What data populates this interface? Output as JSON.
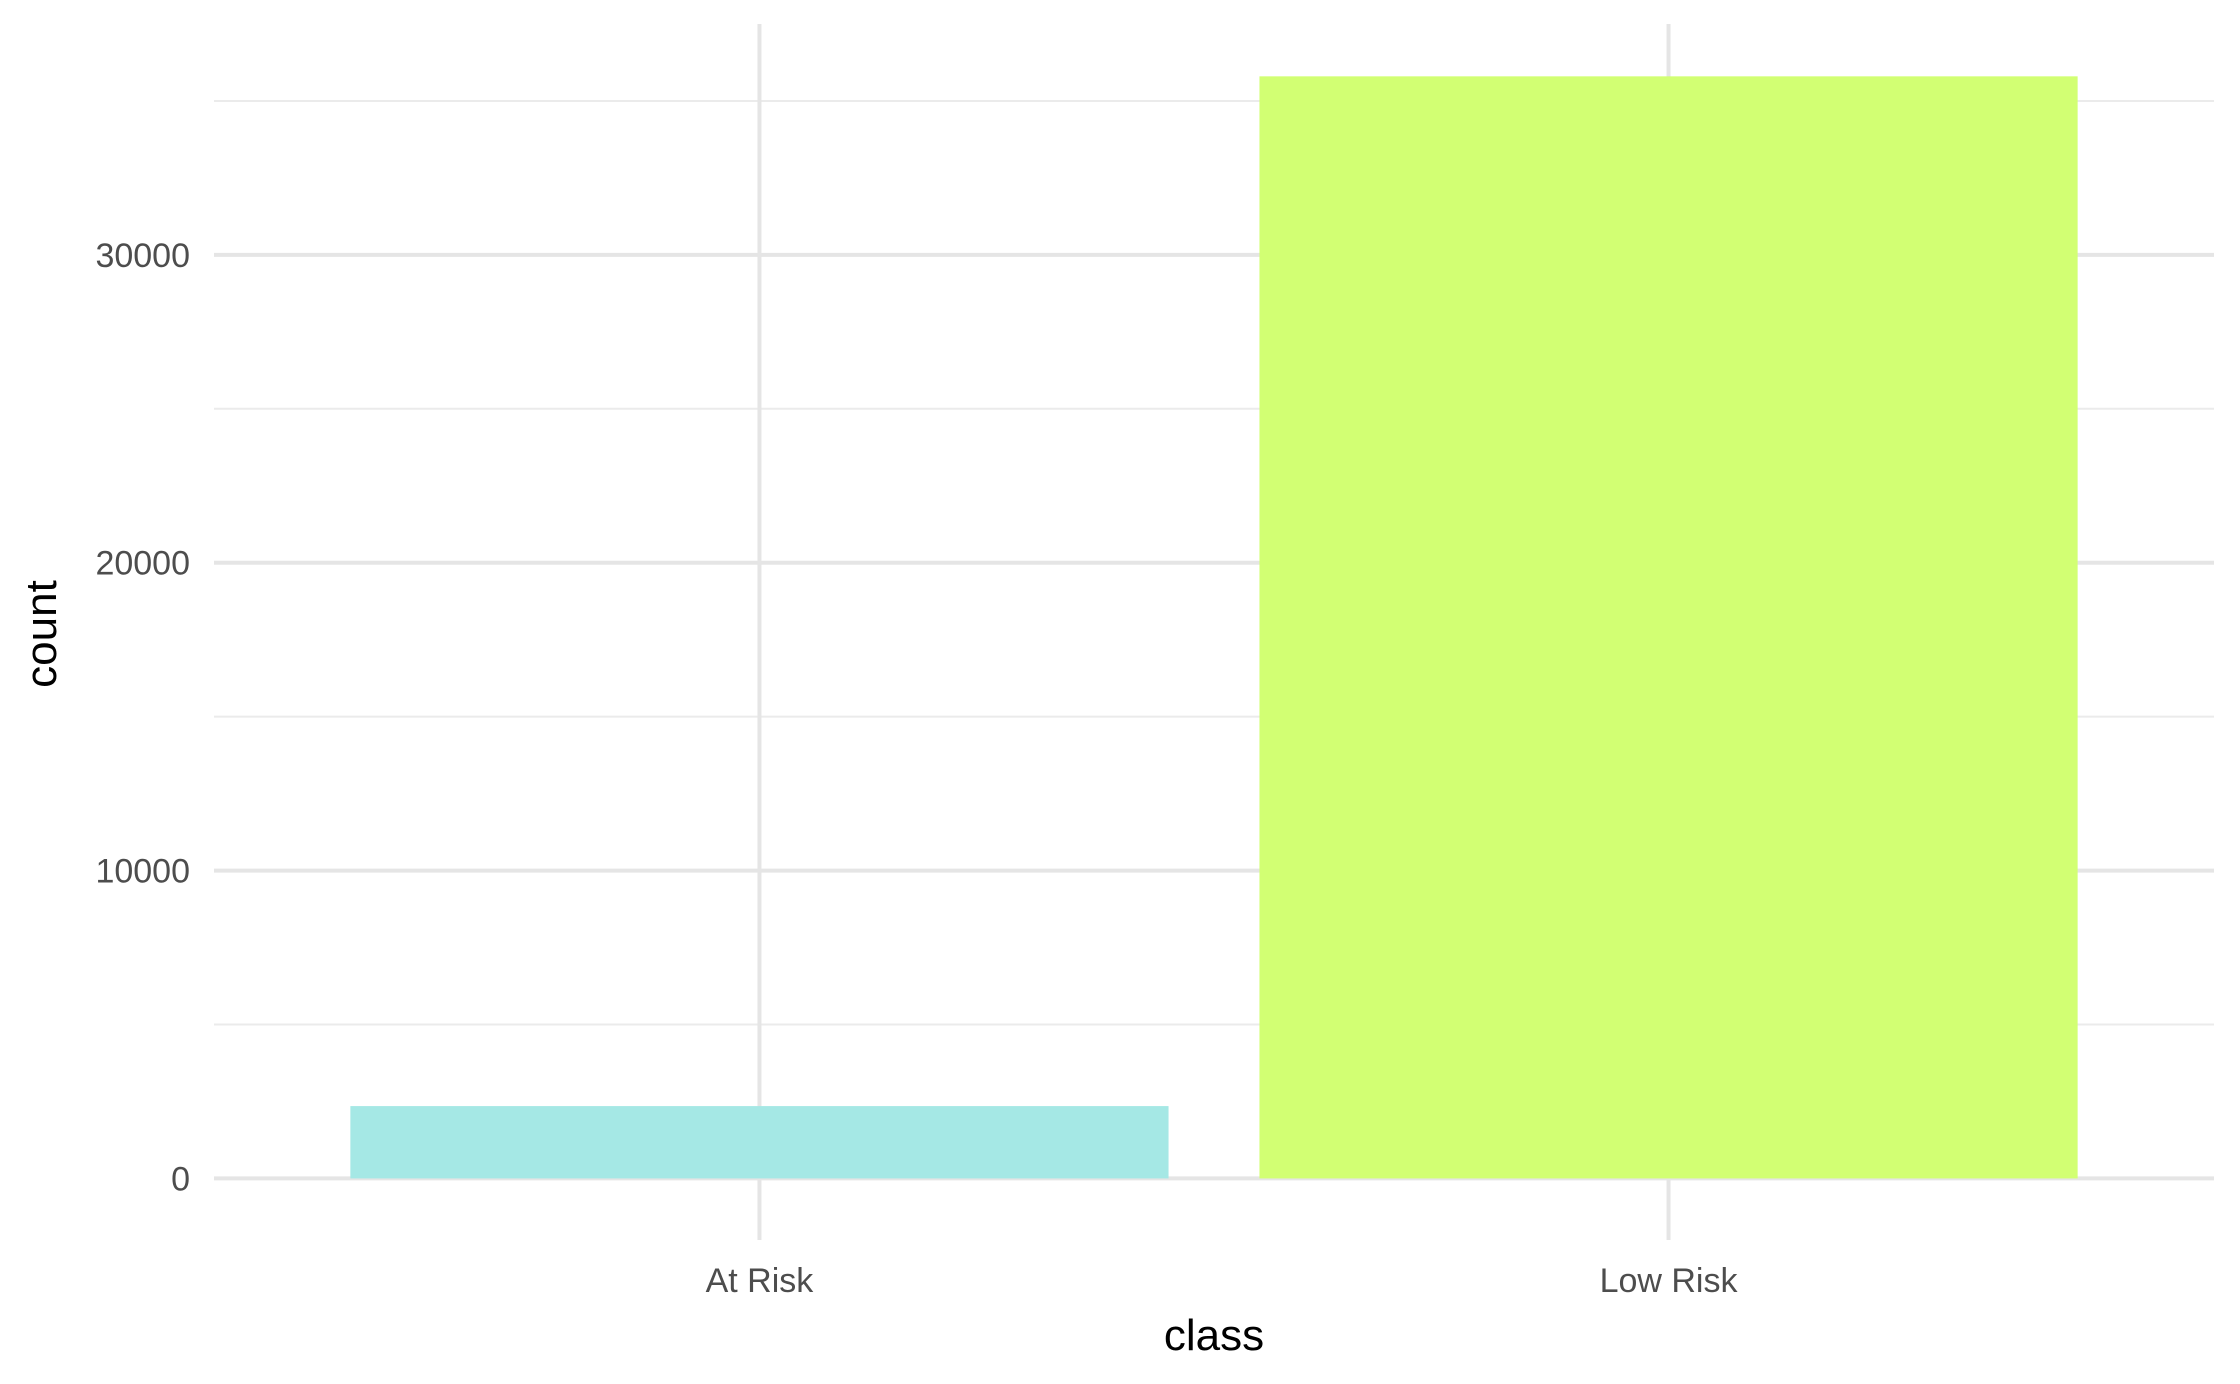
{
  "chart_data": {
    "type": "bar",
    "categories": [
      "At Risk",
      "Low Risk"
    ],
    "values": [
      2350,
      35800
    ],
    "colors": [
      "#a5e8e5",
      "#d2ff73"
    ],
    "title": "",
    "xlabel": "class",
    "ylabel": "count",
    "ylim": [
      -2000,
      37500
    ],
    "yticks": [
      0,
      10000,
      20000,
      30000
    ],
    "ytick_labels": [
      "0",
      "10000",
      "20000",
      "30000"
    ],
    "yminor": [
      5000,
      15000,
      25000,
      35000
    ],
    "grid": true,
    "legend": "none"
  }
}
